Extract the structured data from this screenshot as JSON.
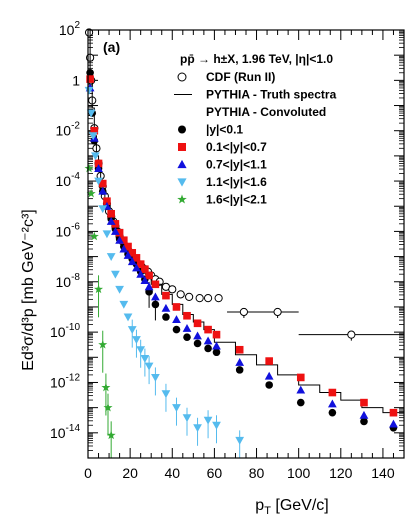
{
  "chart_data": {
    "type": "scatter",
    "panel_label": "(a)",
    "header": "pp̄ → h±X, 1.96 TeV, |η|<1.0",
    "xlabel": "p",
    "xlabel_sub": "T",
    "xlabel_unit": " [GeV/c]",
    "ylabel": "Ed³σ/d³p [mb GeV⁻²c³]",
    "xlim": [
      0,
      150
    ],
    "ylim_log10": [
      -15,
      2
    ],
    "y_scale": "log",
    "x_ticks": [
      0,
      20,
      40,
      60,
      80,
      100,
      120,
      140
    ],
    "y_ticks": [
      {
        "exp": 2,
        "label_base": "10",
        "label_exp": "2"
      },
      {
        "exp": 0,
        "label_base": "1",
        "label_exp": ""
      },
      {
        "exp": -2,
        "label_base": "10",
        "label_exp": "-2"
      },
      {
        "exp": -4,
        "label_base": "10",
        "label_exp": "-4"
      },
      {
        "exp": -6,
        "label_base": "10",
        "label_exp": "-6"
      },
      {
        "exp": -8,
        "label_base": "10",
        "label_exp": "-8"
      },
      {
        "exp": -10,
        "label_base": "10",
        "label_exp": "-10"
      },
      {
        "exp": -12,
        "label_base": "10",
        "label_exp": "-12"
      },
      {
        "exp": -14,
        "label_base": "10",
        "label_exp": "-14"
      }
    ],
    "legend": [
      {
        "key": "cdf",
        "label": "CDF (Run II)",
        "marker": "open-circle",
        "color": "#000000"
      },
      {
        "key": "truth",
        "label": "PYTHIA - Truth spectra",
        "marker": "line",
        "color": "#000000"
      },
      {
        "key": "conv",
        "label": "PYTHIA - Convoluted",
        "marker": "none",
        "color": "#000000"
      },
      {
        "key": "y01",
        "label": "|y|<0.1",
        "marker": "circle",
        "color": "#000000"
      },
      {
        "key": "y07",
        "label": "0.1<|y|<0.7",
        "marker": "square",
        "color": "#ee1111"
      },
      {
        "key": "y11",
        "label": "0.7<|y|<1.1",
        "marker": "triangle-up",
        "color": "#1111dd"
      },
      {
        "key": "y16",
        "label": "1.1<|y|<1.6",
        "marker": "triangle-down",
        "color": "#55bbee"
      },
      {
        "key": "y21",
        "label": "1.6<|y|<2.1",
        "marker": "star",
        "color": "#33aa33"
      }
    ],
    "series": [
      {
        "name": "CDF (Run II)",
        "key": "cdf",
        "marker": "open-circle",
        "color": "#000000",
        "points": [
          {
            "x": 0.5,
            "logy": 1.9
          },
          {
            "x": 1.0,
            "logy": 0.9
          },
          {
            "x": 1.5,
            "logy": 0.0
          },
          {
            "x": 2.0,
            "logy": -0.8
          },
          {
            "x": 3.0,
            "logy": -1.9
          },
          {
            "x": 4.0,
            "logy": -2.7
          },
          {
            "x": 5.0,
            "logy": -3.3
          },
          {
            "x": 6.0,
            "logy": -3.8
          },
          {
            "x": 7.0,
            "logy": -4.2
          },
          {
            "x": 8.0,
            "logy": -4.6
          },
          {
            "x": 9.0,
            "logy": -4.9
          },
          {
            "x": 10.0,
            "logy": -5.2
          },
          {
            "x": 11.0,
            "logy": -5.4
          },
          {
            "x": 12.0,
            "logy": -5.6
          },
          {
            "x": 13.0,
            "logy": -5.8
          },
          {
            "x": 14.0,
            "logy": -6.0
          },
          {
            "x": 15.0,
            "logy": -6.2
          },
          {
            "x": 16.5,
            "logy": -6.4
          },
          {
            "x": 18.0,
            "logy": -6.6
          },
          {
            "x": 19.5,
            "logy": -6.8
          },
          {
            "x": 21.0,
            "logy": -7.0
          },
          {
            "x": 22.5,
            "logy": -7.1
          },
          {
            "x": 24.0,
            "logy": -7.3
          },
          {
            "x": 25.5,
            "logy": -7.4
          },
          {
            "x": 27.0,
            "logy": -7.5
          },
          {
            "x": 28.5,
            "logy": -7.6
          },
          {
            "x": 30.0,
            "logy": -7.75
          },
          {
            "x": 32.0,
            "logy": -7.9
          },
          {
            "x": 34.0,
            "logy": -8.0
          },
          {
            "x": 37.0,
            "logy": -8.2
          },
          {
            "x": 40.0,
            "logy": -8.3
          },
          {
            "x": 44.0,
            "logy": -8.5
          },
          {
            "x": 48.0,
            "logy": -8.6
          },
          {
            "x": 53.0,
            "logy": -8.65
          },
          {
            "x": 57.0,
            "logy": -8.65
          },
          {
            "x": 62.0,
            "logy": -8.65
          },
          {
            "x": 74.0,
            "logy": -9.2,
            "xerr": 8
          },
          {
            "x": 90.0,
            "logy": -9.2,
            "xerr": 10
          },
          {
            "x": 125.0,
            "logy": -10.1,
            "xerr": 25
          }
        ]
      },
      {
        "name": "PYTHIA - Truth spectra",
        "key": "truth",
        "marker": "step",
        "color": "#000000",
        "steps": [
          {
            "x0": 0,
            "x1": 1,
            "logy": 2.0
          },
          {
            "x0": 1,
            "x1": 2,
            "logy": 0.3
          },
          {
            "x0": 2,
            "x1": 3,
            "logy": -1.1
          },
          {
            "x0": 3,
            "x1": 4,
            "logy": -2.2
          },
          {
            "x0": 4,
            "x1": 5,
            "logy": -3.0
          },
          {
            "x0": 5,
            "x1": 6,
            "logy": -3.6
          },
          {
            "x0": 6,
            "x1": 8,
            "logy": -4.3
          },
          {
            "x0": 8,
            "x1": 10,
            "logy": -4.9
          },
          {
            "x0": 10,
            "x1": 12,
            "logy": -5.4
          },
          {
            "x0": 12,
            "x1": 14,
            "logy": -5.8
          },
          {
            "x0": 14,
            "x1": 16,
            "logy": -6.1
          },
          {
            "x0": 16,
            "x1": 18,
            "logy": -6.4
          },
          {
            "x0": 18,
            "x1": 20,
            "logy": -6.7
          },
          {
            "x0": 20,
            "x1": 22,
            "logy": -6.9
          },
          {
            "x0": 22,
            "x1": 24,
            "logy": -7.1
          },
          {
            "x0": 24,
            "x1": 26,
            "logy": -7.3
          },
          {
            "x0": 26,
            "x1": 28,
            "logy": -7.5
          },
          {
            "x0": 28,
            "x1": 30,
            "logy": -7.7
          },
          {
            "x0": 30,
            "x1": 35,
            "logy": -8.1
          },
          {
            "x0": 35,
            "x1": 40,
            "logy": -8.5
          },
          {
            "x0": 40,
            "x1": 45,
            "logy": -8.9
          },
          {
            "x0": 45,
            "x1": 50,
            "logy": -9.3
          },
          {
            "x0": 50,
            "x1": 55,
            "logy": -9.6
          },
          {
            "x0": 55,
            "x1": 60,
            "logy": -9.9
          },
          {
            "x0": 60,
            "x1": 70,
            "logy": -10.4
          },
          {
            "x0": 70,
            "x1": 80,
            "logy": -10.9
          },
          {
            "x0": 80,
            "x1": 90,
            "logy": -11.3
          },
          {
            "x0": 90,
            "x1": 100,
            "logy": -11.7
          },
          {
            "x0": 100,
            "x1": 110,
            "logy": -12.1
          },
          {
            "x0": 110,
            "x1": 120,
            "logy": -12.4
          },
          {
            "x0": 120,
            "x1": 130,
            "logy": -12.7
          },
          {
            "x0": 130,
            "x1": 140,
            "logy": -13.0
          },
          {
            "x0": 140,
            "x1": 150,
            "logy": -13.2
          }
        ]
      },
      {
        "name": "|y|<0.1",
        "key": "y01",
        "marker": "circle",
        "color": "#000000",
        "points": [
          {
            "x": 1.0,
            "logy": 0.3
          },
          {
            "x": 2.0,
            "logy": -1.3
          },
          {
            "x": 3.0,
            "logy": -2.4
          },
          {
            "x": 5.0,
            "logy": -3.5
          },
          {
            "x": 7.0,
            "logy": -4.4
          },
          {
            "x": 9.0,
            "logy": -5.0
          },
          {
            "x": 11.0,
            "logy": -5.5
          },
          {
            "x": 13.0,
            "logy": -5.9
          },
          {
            "x": 15.0,
            "logy": -6.3
          },
          {
            "x": 17.0,
            "logy": -6.6
          },
          {
            "x": 19.0,
            "logy": -6.9
          },
          {
            "x": 21.0,
            "logy": -7.1
          },
          {
            "x": 23.0,
            "logy": -7.3
          },
          {
            "x": 25.0,
            "logy": -7.6
          },
          {
            "x": 27.0,
            "logy": -7.9
          },
          {
            "x": 29.0,
            "logy": -8.4
          },
          {
            "x": 32.0,
            "logy": -8.9
          },
          {
            "x": 37.0,
            "logy": -9.4
          },
          {
            "x": 42.0,
            "logy": -9.9
          },
          {
            "x": 47.0,
            "logy": -10.2
          },
          {
            "x": 52.0,
            "logy": -10.45
          },
          {
            "x": 57.0,
            "logy": -10.65
          },
          {
            "x": 61.0,
            "logy": -10.8
          },
          {
            "x": 72.0,
            "logy": -11.5
          },
          {
            "x": 86.0,
            "logy": -12.1
          },
          {
            "x": 101.0,
            "logy": -12.8
          },
          {
            "x": 116.0,
            "logy": -13.2
          },
          {
            "x": 131.0,
            "logy": -13.55
          },
          {
            "x": 145.0,
            "logy": -13.8
          }
        ]
      },
      {
        "name": "0.1<|y|<0.7",
        "key": "y07",
        "marker": "square",
        "color": "#ee1111",
        "points": [
          {
            "x": 1.0,
            "logy": 0.05
          },
          {
            "x": 3.0,
            "logy": -2.0
          },
          {
            "x": 5.0,
            "logy": -3.3
          },
          {
            "x": 7.0,
            "logy": -4.1
          },
          {
            "x": 9.0,
            "logy": -4.8
          },
          {
            "x": 11.0,
            "logy": -5.3
          },
          {
            "x": 13.0,
            "logy": -5.7
          },
          {
            "x": 15.0,
            "logy": -6.05
          },
          {
            "x": 17.0,
            "logy": -6.35
          },
          {
            "x": 19.0,
            "logy": -6.6
          },
          {
            "x": 21.0,
            "logy": -6.85
          },
          {
            "x": 23.0,
            "logy": -7.05
          },
          {
            "x": 25.0,
            "logy": -7.3
          },
          {
            "x": 27.0,
            "logy": -7.5
          },
          {
            "x": 29.0,
            "logy": -7.75
          },
          {
            "x": 32.0,
            "logy": -8.1
          },
          {
            "x": 37.0,
            "logy": -8.55
          },
          {
            "x": 42.0,
            "logy": -9.0
          },
          {
            "x": 47.0,
            "logy": -9.35
          },
          {
            "x": 52.0,
            "logy": -9.65
          },
          {
            "x": 57.0,
            "logy": -9.9
          },
          {
            "x": 61.0,
            "logy": -10.1
          },
          {
            "x": 72.0,
            "logy": -10.7
          },
          {
            "x": 86.0,
            "logy": -11.15
          },
          {
            "x": 101.0,
            "logy": -11.8
          },
          {
            "x": 116.0,
            "logy": -12.4
          },
          {
            "x": 131.0,
            "logy": -12.8
          },
          {
            "x": 145.0,
            "logy": -13.2
          }
        ]
      },
      {
        "name": "0.7<|y|<1.1",
        "key": "y11",
        "marker": "triangle-up",
        "color": "#1111dd",
        "points": [
          {
            "x": 1.0,
            "logy": -0.3
          },
          {
            "x": 3.0,
            "logy": -2.3
          },
          {
            "x": 5.0,
            "logy": -3.5
          },
          {
            "x": 7.0,
            "logy": -4.4
          },
          {
            "x": 9.0,
            "logy": -5.0
          },
          {
            "x": 11.0,
            "logy": -5.6
          },
          {
            "x": 13.0,
            "logy": -6.0
          },
          {
            "x": 15.0,
            "logy": -6.35
          },
          {
            "x": 17.0,
            "logy": -6.7
          },
          {
            "x": 19.0,
            "logy": -6.95
          },
          {
            "x": 21.0,
            "logy": -7.2
          },
          {
            "x": 23.0,
            "logy": -7.45
          },
          {
            "x": 25.0,
            "logy": -7.7
          },
          {
            "x": 27.0,
            "logy": -7.95
          },
          {
            "x": 29.0,
            "logy": -8.2
          },
          {
            "x": 32.0,
            "logy": -8.6
          },
          {
            "x": 37.0,
            "logy": -9.05
          },
          {
            "x": 42.0,
            "logy": -9.5
          },
          {
            "x": 47.0,
            "logy": -9.85
          },
          {
            "x": 52.0,
            "logy": -10.15
          },
          {
            "x": 57.0,
            "logy": -10.35
          },
          {
            "x": 61.0,
            "logy": -10.55
          },
          {
            "x": 72.0,
            "logy": -11.2
          },
          {
            "x": 86.0,
            "logy": -11.75
          },
          {
            "x": 101.0,
            "logy": -12.3
          },
          {
            "x": 116.0,
            "logy": -12.85
          },
          {
            "x": 131.0,
            "logy": -13.3
          },
          {
            "x": 145.0,
            "logy": -13.65
          }
        ]
      },
      {
        "name": "1.1<|y|<1.6",
        "key": "y16",
        "marker": "triangle-down",
        "color": "#55bbee",
        "points": [
          {
            "x": 0.5,
            "logy": -0.4
          },
          {
            "x": 1.5,
            "logy": -1.3
          },
          {
            "x": 2.5,
            "logy": -2.2
          },
          {
            "x": 3.5,
            "logy": -3.0
          },
          {
            "x": 5.0,
            "logy": -4.0
          },
          {
            "x": 7.0,
            "logy": -5.1
          },
          {
            "x": 9.0,
            "logy": -6.1
          },
          {
            "x": 11.0,
            "logy": -7.0
          },
          {
            "x": 13.0,
            "logy": -7.7
          },
          {
            "x": 15.0,
            "logy": -8.3
          },
          {
            "x": 17.0,
            "logy": -8.9
          },
          {
            "x": 19.0,
            "logy": -9.4
          },
          {
            "x": 21.0,
            "logy": -9.9
          },
          {
            "x": 23.0,
            "logy": -10.3
          },
          {
            "x": 25.0,
            "logy": -10.7
          },
          {
            "x": 27.0,
            "logy": -11.05
          },
          {
            "x": 29.0,
            "logy": -11.35
          },
          {
            "x": 32.0,
            "logy": -11.8
          },
          {
            "x": 37.0,
            "logy": -12.45
          },
          {
            "x": 42.0,
            "logy": -13.0
          },
          {
            "x": 47.0,
            "logy": -13.4
          },
          {
            "x": 52.0,
            "logy": -13.8
          },
          {
            "x": 57.0,
            "logy": -13.5
          },
          {
            "x": 61.0,
            "logy": -13.7
          },
          {
            "x": 72.0,
            "logy": -14.3
          }
        ]
      },
      {
        "name": "1.6<|y|<2.1",
        "key": "y21",
        "marker": "star",
        "color": "#33aa33",
        "points": [
          {
            "x": 0.5,
            "logy": -3.5
          },
          {
            "x": 1.5,
            "logy": -4.5
          },
          {
            "x": 3.0,
            "logy": -6.2
          },
          {
            "x": 5.0,
            "logy": -8.3
          },
          {
            "x": 7.0,
            "logy": -10.5
          },
          {
            "x": 8.5,
            "logy": -12.2
          },
          {
            "x": 9.5,
            "logy": -13.0
          },
          {
            "x": 11.0,
            "logy": -14.1
          }
        ]
      }
    ]
  }
}
